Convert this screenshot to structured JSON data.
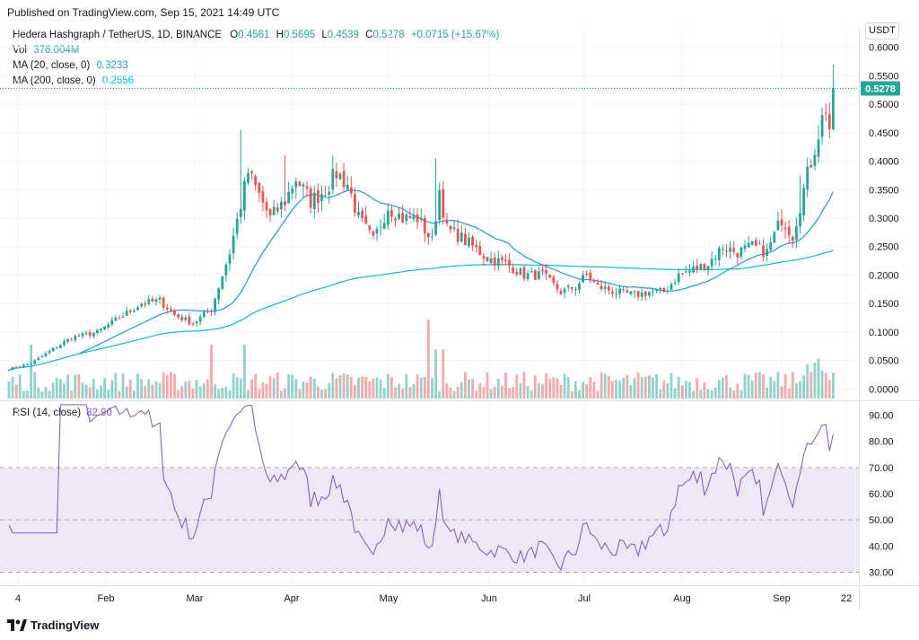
{
  "header": {
    "published": "Published on TradingView.com, Sep 15, 2021 14:49 UTC"
  },
  "legend": {
    "symbol": "Hedera Hashgraph / TetherUS, 1D, BINANCE",
    "o_label": "O",
    "o": "0.4561",
    "h_label": "H",
    "h": "0.5695",
    "l_label": "L",
    "l": "0.4539",
    "c_label": "C",
    "c": "0.5278",
    "change": "+0.0715 (+15.67%)",
    "vol_label": "Vol",
    "vol": "376.004M",
    "ma20_label": "MA (20, close, 0)",
    "ma20": "0.3233",
    "ma200_label": "MA (200, close, 0)",
    "ma200": "0.2556"
  },
  "currency_button": "USDT",
  "price_tag": "0.5278",
  "rsi_legend": {
    "label": "RSI (14, close)",
    "value": "82.90"
  },
  "brand": "TradingView",
  "colors": {
    "up": "#26a69a",
    "down": "#ef5350",
    "ma20": "#2196f3",
    "ma200": "#00bcd4",
    "rsi": "#7e57c2",
    "rsi_band": "#ede7f6"
  },
  "chart_data": [
    {
      "type": "candlestick",
      "title": "Hedera Hashgraph / TetherUS, 1D, BINANCE",
      "ylim": [
        -0.02,
        0.62
      ],
      "y_ticks": [
        "0.6000",
        "0.5500",
        "0.5000",
        "0.4500",
        "0.4000",
        "0.3500",
        "0.3000",
        "0.2500",
        "0.2000",
        "0.1500",
        "0.1000",
        "0.0500",
        "0.0000"
      ],
      "x_ticks": [
        "4",
        "Feb",
        "Mar",
        "Apr",
        "May",
        "Jun",
        "Jul",
        "Aug",
        "Sep",
        "22"
      ],
      "series": [
        {
          "name": "Price",
          "anchors_close": [
            [
              0,
              0.035
            ],
            [
              6,
              0.045
            ],
            [
              12,
              0.07
            ],
            [
              17,
              0.09
            ],
            [
              24,
              0.1
            ],
            [
              30,
              0.125
            ],
            [
              36,
              0.15
            ],
            [
              41,
              0.155
            ],
            [
              45,
              0.13
            ],
            [
              50,
              0.115
            ],
            [
              55,
              0.14
            ],
            [
              60,
              0.24
            ],
            [
              65,
              0.38
            ],
            [
              68,
              0.34
            ],
            [
              71,
              0.3
            ],
            [
              75,
              0.33
            ],
            [
              78,
              0.37
            ],
            [
              82,
              0.33
            ],
            [
              86,
              0.35
            ],
            [
              89,
              0.38
            ],
            [
              92,
              0.36
            ],
            [
              95,
              0.3
            ],
            [
              99,
              0.26
            ],
            [
              103,
              0.32
            ],
            [
              107,
              0.3
            ],
            [
              111,
              0.3
            ],
            [
              115,
              0.26
            ],
            [
              117,
              0.35
            ],
            [
              119,
              0.28
            ],
            [
              122,
              0.27
            ],
            [
              126,
              0.25
            ],
            [
              130,
              0.23
            ],
            [
              135,
              0.22
            ],
            [
              140,
              0.2
            ],
            [
              145,
              0.2
            ],
            [
              150,
              0.17
            ],
            [
              154,
              0.18
            ],
            [
              157,
              0.2
            ],
            [
              160,
              0.18
            ],
            [
              165,
              0.17
            ],
            [
              170,
              0.165
            ],
            [
              174,
              0.17
            ],
            [
              178,
              0.17
            ],
            [
              182,
              0.2
            ],
            [
              186,
              0.21
            ],
            [
              190,
              0.22
            ],
            [
              194,
              0.25
            ],
            [
              198,
              0.24
            ],
            [
              202,
              0.25
            ],
            [
              206,
              0.24
            ],
            [
              210,
              0.3
            ],
            [
              213,
              0.27
            ],
            [
              216,
              0.35
            ],
            [
              218,
              0.4
            ],
            [
              220,
              0.45
            ],
            [
              223,
              0.52
            ]
          ]
        },
        {
          "name": "MA (20, close, 0)",
          "last": 0.3233
        },
        {
          "name": "MA (200, close, 0)",
          "last": 0.2556
        },
        {
          "name": "Vol",
          "last": "376.004M"
        }
      ]
    },
    {
      "type": "line",
      "title": "RSI (14, close)",
      "ylim": [
        25,
        95
      ],
      "y_ticks": [
        "90.00",
        "80.00",
        "70.00",
        "60.00",
        "50.00",
        "40.00",
        "30.00"
      ],
      "bands": [
        30,
        50,
        70
      ],
      "series": [
        {
          "name": "RSI (14, close)",
          "last": 82.9
        }
      ]
    }
  ]
}
